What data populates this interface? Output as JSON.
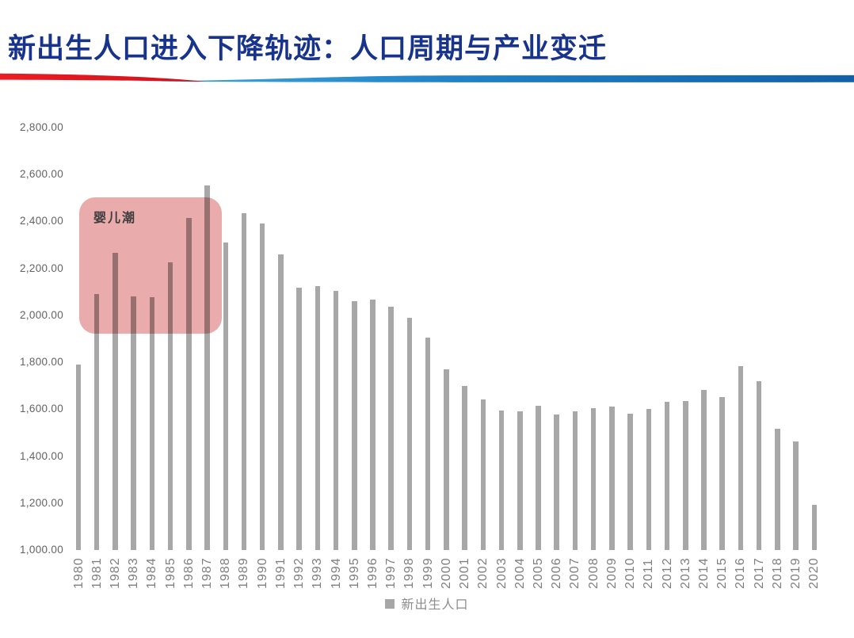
{
  "page": {
    "title": "新出生人口进入下降轨迹：人口周期与产业变迁"
  },
  "colors": {
    "title_text": "#17338C",
    "bar": "#A7A7A7",
    "annotation_fill": "#E9ABAB",
    "divider_red": "#ED1C24",
    "divider_red_dark": "#D01119",
    "divider_blue_light": "#41A9DE",
    "divider_blue_mid": "#1E7FC4",
    "divider_blue_dark": "#1261A8"
  },
  "chart_data": {
    "type": "bar",
    "title": "",
    "xlabel": "",
    "ylabel": "",
    "unit_hint": "万人",
    "grid": false,
    "legend_position": "bottom-center",
    "ylim": [
      1000,
      2800
    ],
    "categories": [
      "1980",
      "1981",
      "1982",
      "1983",
      "1984",
      "1985",
      "1986",
      "1987",
      "1988",
      "1989",
      "1990",
      "1991",
      "1992",
      "1993",
      "1994",
      "1995",
      "1996",
      "1997",
      "1998",
      "1999",
      "2000",
      "2001",
      "2002",
      "2003",
      "2004",
      "2005",
      "2006",
      "2007",
      "2008",
      "2009",
      "2010",
      "2011",
      "2012",
      "2013",
      "2014",
      "2015",
      "2016",
      "2017",
      "2018",
      "2019",
      "2020"
    ],
    "series": [
      {
        "name": "新出生人口",
        "values": [
          1790,
          2092,
          2265,
          2082,
          2076,
          2226,
          2415,
          2555,
          2312,
          2434,
          2392,
          2260,
          2118,
          2126,
          2103,
          2062,
          2066,
          2036,
          1990,
          1906,
          1770,
          1698,
          1640,
          1596,
          1590,
          1613,
          1578,
          1590,
          1604,
          1611,
          1581,
          1601,
          1632,
          1636,
          1682,
          1652,
          1784,
          1720,
          1516,
          1462,
          1191
        ]
      }
    ],
    "y_ticks": [
      {
        "value": 2800,
        "label": "2,800.00"
      },
      {
        "value": 2600,
        "label": "2,600.00"
      },
      {
        "value": 2400,
        "label": "2,400.00"
      },
      {
        "value": 2200,
        "label": "2,200.00"
      },
      {
        "value": 2000,
        "label": "2,000.00"
      },
      {
        "value": 1800,
        "label": "1,800.00"
      },
      {
        "value": 1600,
        "label": "1,600.00"
      },
      {
        "value": 1400,
        "label": "1,400.00"
      },
      {
        "value": 1200,
        "label": "1,200.00"
      },
      {
        "value": 1000,
        "label": "1,000.00"
      }
    ],
    "annotation": {
      "label": "婴儿潮",
      "year_range": [
        "1981",
        "1987"
      ]
    }
  }
}
